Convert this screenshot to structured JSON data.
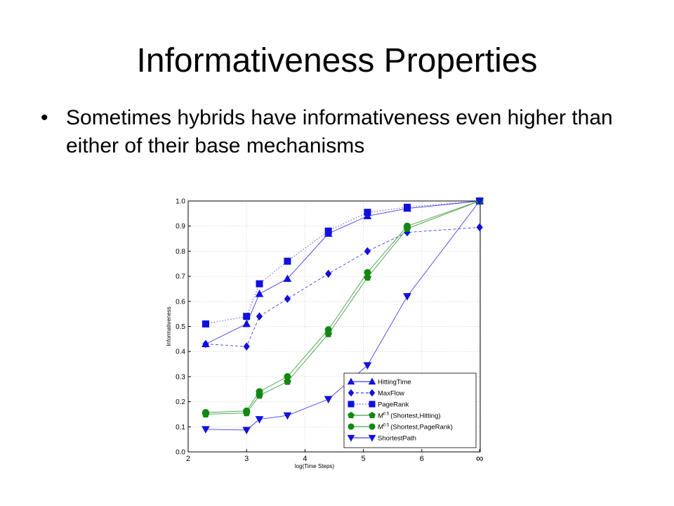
{
  "slide": {
    "title": "Informativeness Properties",
    "bullet_marker": "•",
    "bullet": "Sometimes hybrids have informativeness even higher than either of their base mechanisms"
  },
  "chart_data": {
    "type": "line",
    "xlabel": "log(Time Steps)",
    "ylabel": "Informativeness",
    "xlim": [
      2,
      7
    ],
    "ylim": [
      0,
      1.0
    ],
    "xticks": [
      2,
      3,
      4,
      5,
      6,
      6.99
    ],
    "xtick_labels": [
      "2",
      "3",
      "4",
      "5",
      "6",
      "∞"
    ],
    "yticks": [
      0.0,
      0.1,
      0.2,
      0.3,
      0.4,
      0.5,
      0.6,
      0.7,
      0.8,
      0.9,
      1.0
    ],
    "ytick_labels": [
      "0.0",
      "0.1",
      "0.2",
      "0.3",
      "0.4",
      "0.5",
      "0.6",
      "0.7",
      "0.8",
      "0.9",
      "1.0"
    ],
    "grid": true,
    "legend_position": "lower-right",
    "series": [
      {
        "name": "HittingTime",
        "color": "#1010e0",
        "marker": "triangle-up",
        "dash": "solid",
        "points": [
          [
            2.3,
            0.43
          ],
          [
            3.0,
            0.51
          ],
          [
            3.22,
            0.63
          ],
          [
            3.7,
            0.69
          ],
          [
            4.4,
            0.87
          ],
          [
            5.07,
            0.94
          ],
          [
            5.75,
            0.97
          ],
          [
            6.99,
            1.0
          ]
        ]
      },
      {
        "name": "MaxFlow",
        "color": "#1010e0",
        "marker": "diamond",
        "dash": "dashed",
        "points": [
          [
            2.3,
            0.43
          ],
          [
            3.0,
            0.42
          ],
          [
            3.22,
            0.54
          ],
          [
            3.7,
            0.61
          ],
          [
            4.4,
            0.71
          ],
          [
            5.07,
            0.8
          ],
          [
            5.75,
            0.875
          ],
          [
            6.99,
            0.895
          ]
        ]
      },
      {
        "name": "PageRank",
        "color": "#1010e0",
        "marker": "square",
        "dash": "dotted",
        "points": [
          [
            2.3,
            0.51
          ],
          [
            3.0,
            0.54
          ],
          [
            3.22,
            0.67
          ],
          [
            3.7,
            0.76
          ],
          [
            4.4,
            0.88
          ],
          [
            5.07,
            0.955
          ],
          [
            5.75,
            0.975
          ],
          [
            6.99,
            1.0
          ]
        ]
      },
      {
        "name": "M^0.5(Shortest,Hitting)",
        "color": "#118811",
        "marker": "pentagon",
        "dash": "solid",
        "points": [
          [
            2.3,
            0.15
          ],
          [
            3.0,
            0.155
          ],
          [
            3.22,
            0.225
          ],
          [
            3.7,
            0.28
          ],
          [
            4.4,
            0.47
          ],
          [
            5.07,
            0.695
          ],
          [
            5.75,
            0.89
          ],
          [
            6.99,
            1.0
          ]
        ]
      },
      {
        "name": "M^0.5(Shortest,PageRank)",
        "color": "#118811",
        "marker": "circle",
        "dash": "solid",
        "points": [
          [
            2.3,
            0.157
          ],
          [
            3.0,
            0.163
          ],
          [
            3.22,
            0.24
          ],
          [
            3.7,
            0.3
          ],
          [
            4.4,
            0.487
          ],
          [
            5.07,
            0.715
          ],
          [
            5.75,
            0.9
          ],
          [
            6.99,
            1.0
          ]
        ]
      },
      {
        "name": "ShortestPath",
        "color": "#1010e0",
        "marker": "triangle-down",
        "dash": "solid",
        "points": [
          [
            2.3,
            0.09
          ],
          [
            3.0,
            0.087
          ],
          [
            3.22,
            0.13
          ],
          [
            3.7,
            0.145
          ],
          [
            4.4,
            0.21
          ],
          [
            5.07,
            0.345
          ],
          [
            5.75,
            0.62
          ],
          [
            6.99,
            1.0
          ]
        ]
      }
    ],
    "legend": [
      {
        "label": "HittingTime"
      },
      {
        "label": "MaxFlow"
      },
      {
        "label": "PageRank"
      },
      {
        "prefix": "M",
        "sup": "0.5",
        "label": "(Shortest,Hitting)"
      },
      {
        "prefix": "M",
        "sup": "0.5",
        "label": "(Shortest,PageRank)"
      },
      {
        "label": "ShortestPath"
      }
    ]
  }
}
